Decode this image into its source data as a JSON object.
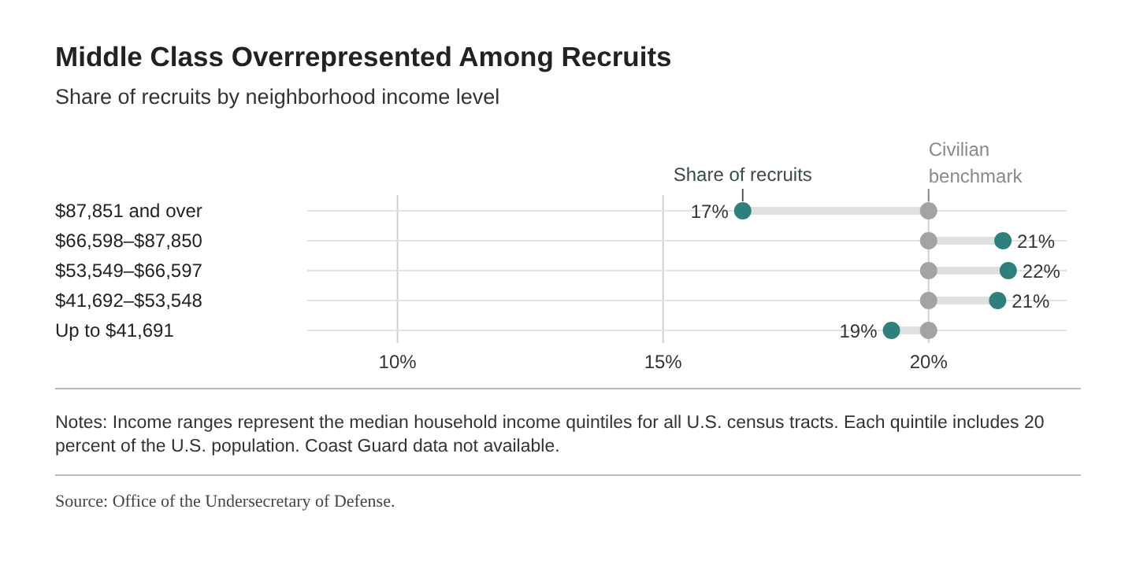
{
  "chart_data": {
    "type": "scatter",
    "orientation": "horizontal",
    "title": "Middle Class Overrepresented Among Recruits",
    "subtitle": "Share of recruits by neighborhood income level",
    "categories": [
      "$87,851 and over",
      "$66,598–$87,850",
      "$53,549–$66,597",
      "$41,692–$53,548",
      "Up to $41,691"
    ],
    "series": [
      {
        "name": "Civilian benchmark",
        "color": "#a3a3a3",
        "values": [
          20,
          20,
          20,
          20,
          20
        ]
      },
      {
        "name": "Share of recruits",
        "color": "#2f7f7d",
        "values": [
          16.5,
          21.4,
          21.5,
          21.3,
          19.3
        ],
        "value_labels": [
          "17%",
          "21%",
          "22%",
          "21%",
          "19%"
        ]
      }
    ],
    "xlim": [
      8.3,
      22.6
    ],
    "xticks": [
      {
        "value": 10,
        "label": "10%"
      },
      {
        "value": 15,
        "label": "15%"
      },
      {
        "value": 20,
        "label": "20%"
      }
    ],
    "grid": true,
    "marker": "circle",
    "legend": false,
    "annotations": [
      "Notes: Income ranges represent the median household income quintiles for all U.S. census tracts. Each quintile includes 20 percent of the U.S. population. Coast Guard data not available.",
      "Source: Office of the Undersecretary of Defense."
    ]
  }
}
